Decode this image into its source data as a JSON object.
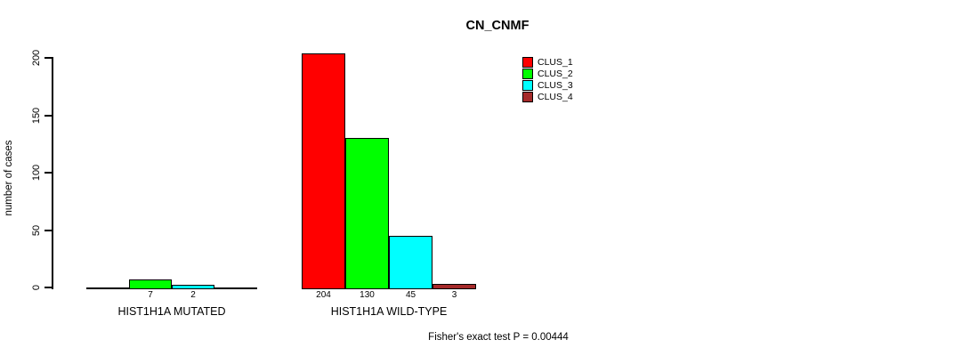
{
  "chart_data": {
    "type": "bar",
    "title": "CN_CNMF",
    "ylabel": "number of cases",
    "xlabel": "",
    "ylim": [
      0,
      210
    ],
    "yticks": [
      0,
      50,
      100,
      150,
      200
    ],
    "grid": false,
    "legend_position": "top-right",
    "series_names": [
      "CLUS_1",
      "CLUS_2",
      "CLUS_3",
      "CLUS_4"
    ],
    "series_colors": [
      "#FF0000",
      "#00FF00",
      "#00FFFF",
      "#A52A2A"
    ],
    "groups": [
      {
        "category": "HIST1H1A MUTATED",
        "values": [
          0,
          7,
          2,
          0
        ],
        "bar_labels": [
          "",
          "7",
          "2",
          ""
        ]
      },
      {
        "category": "HIST1H1A WILD-TYPE",
        "values": [
          204,
          130,
          45,
          3
        ],
        "bar_labels": [
          "204",
          "130",
          "45",
          "3"
        ]
      }
    ],
    "annotation": "Fisher's exact test P = 0.00444"
  }
}
